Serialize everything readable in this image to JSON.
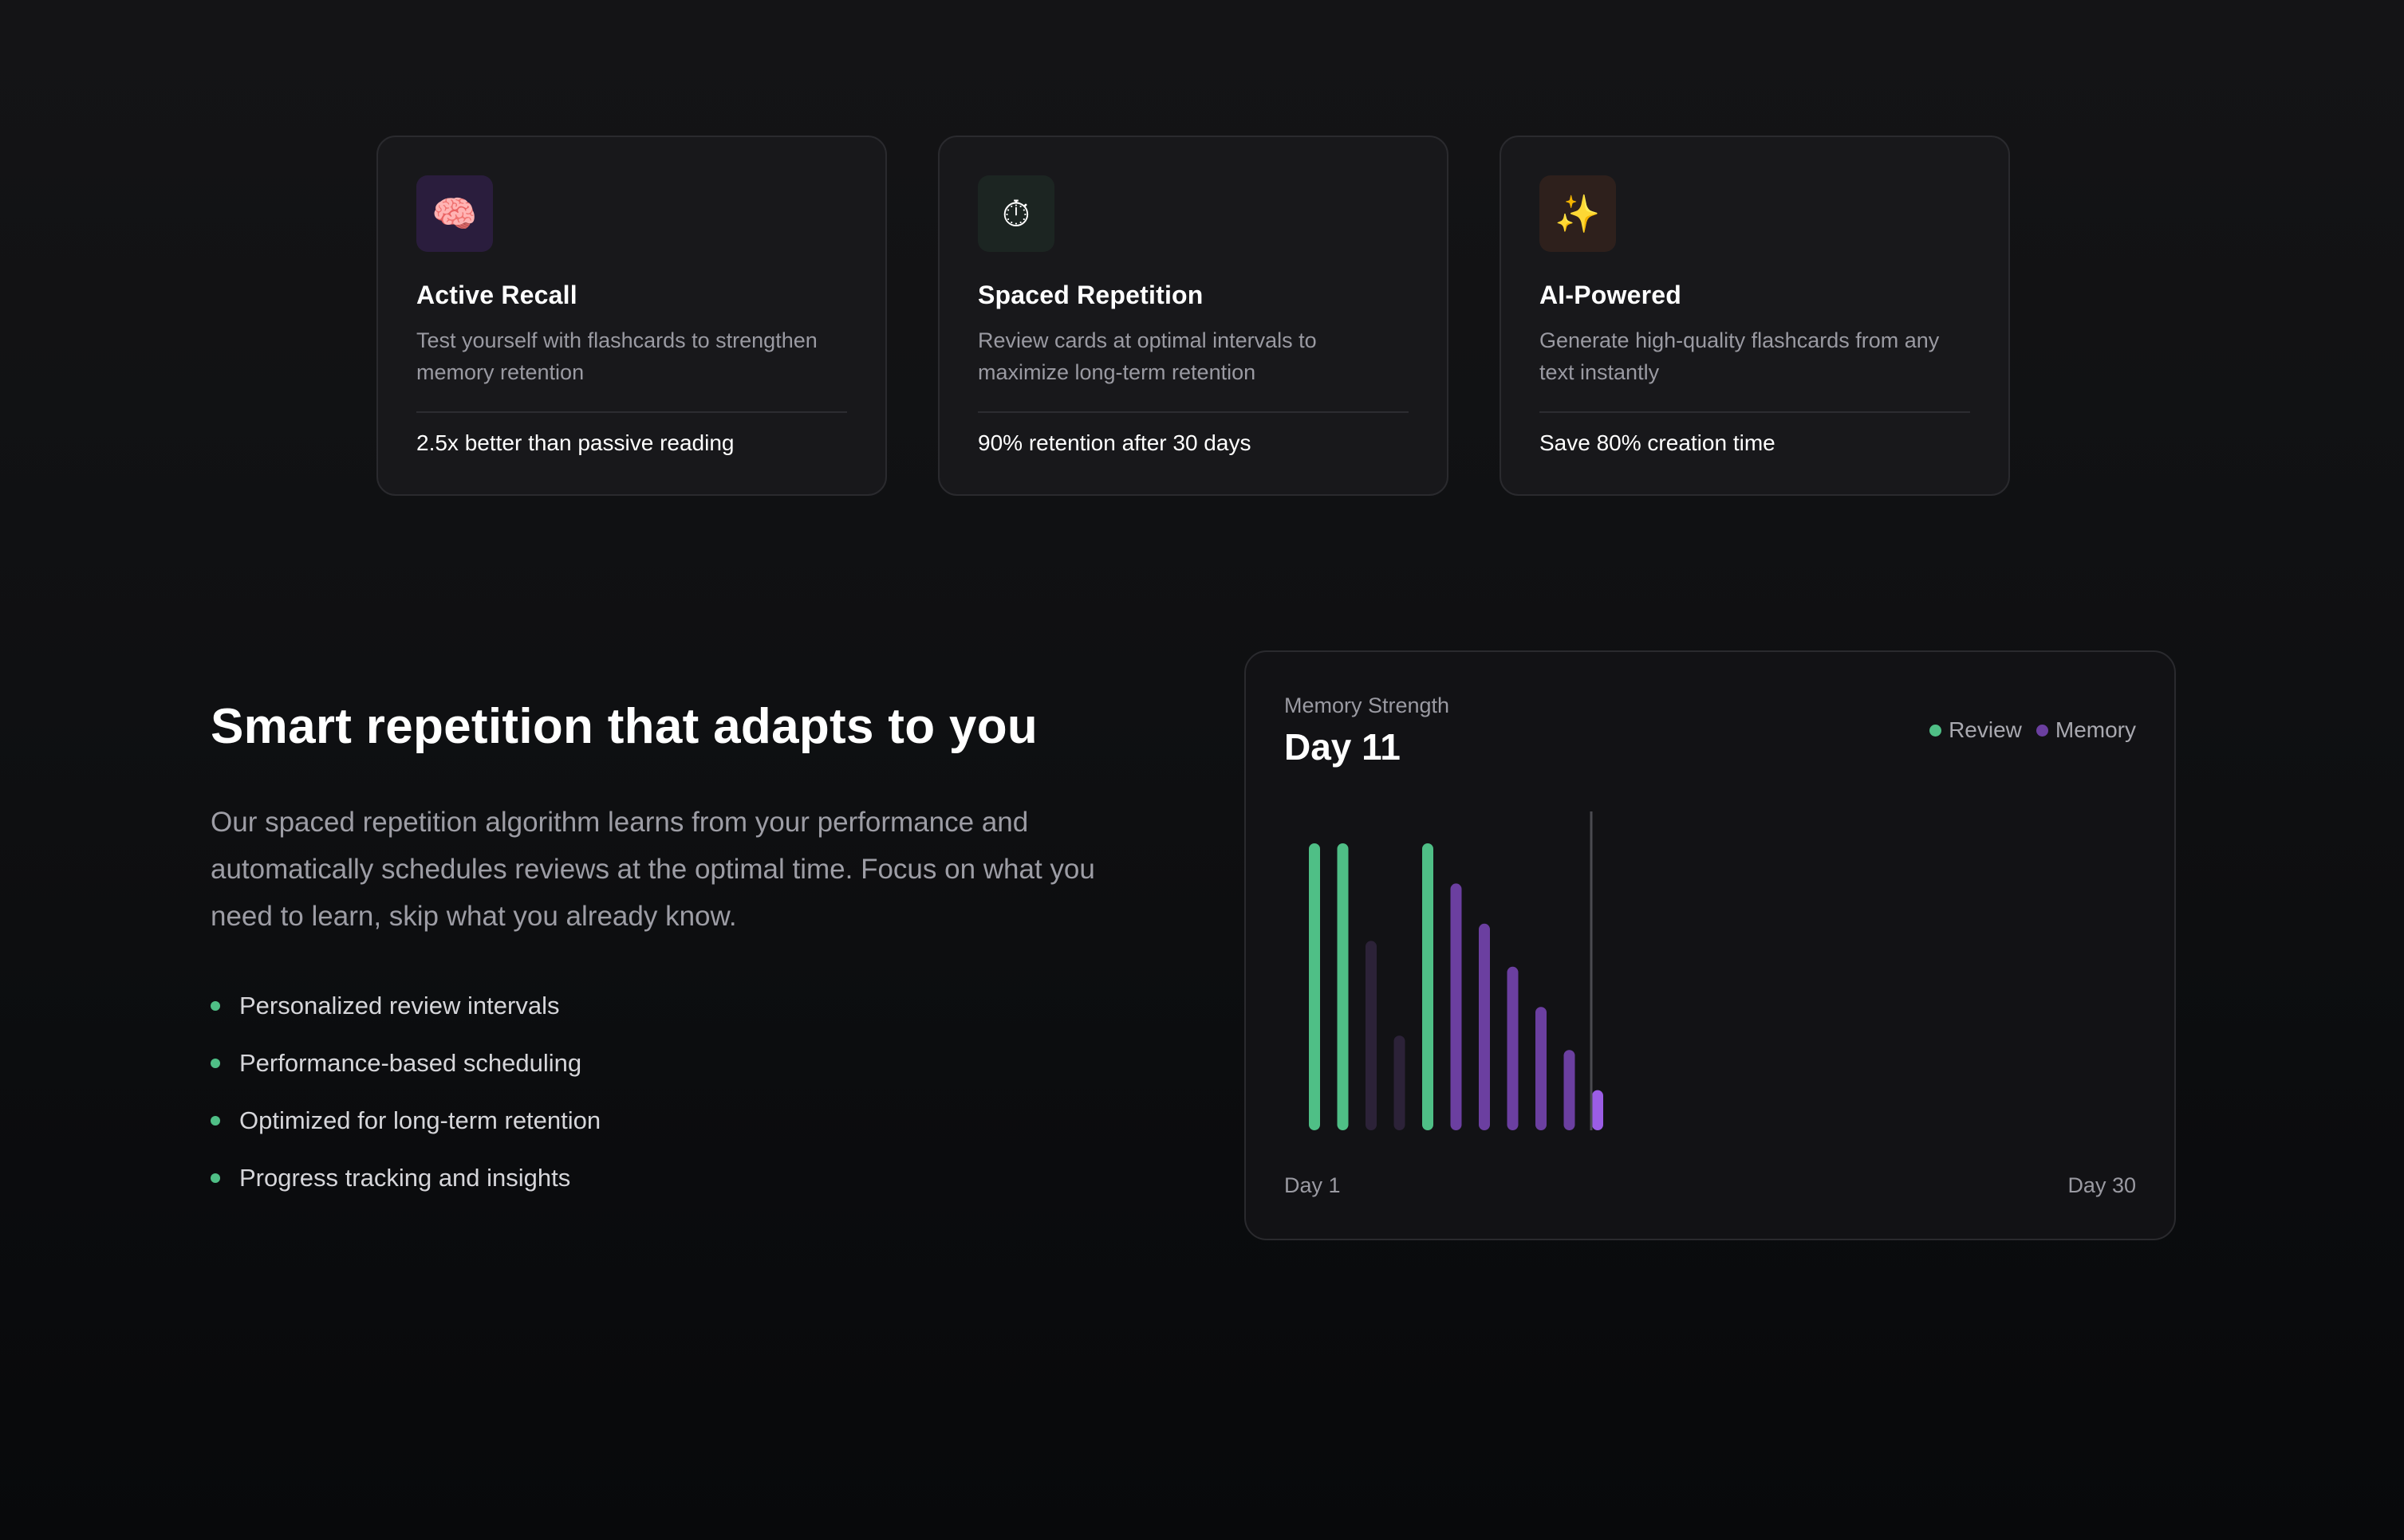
{
  "features": [
    {
      "icon": "brain-icon",
      "emoji": "🧠",
      "tint": "purple",
      "title": "Active Recall",
      "description": "Test yourself with flashcards to strengthen memory retention",
      "stat": "2.5x better than passive reading"
    },
    {
      "icon": "stopwatch-icon",
      "emoji": "⏱",
      "tint": "teal",
      "title": "Spaced Repetition",
      "description": "Review cards at optimal intervals to maximize long-term retention",
      "stat": "90% retention after 30 days"
    },
    {
      "icon": "magic-wand-icon",
      "emoji": "✨",
      "tint": "brown",
      "title": "AI-Powered",
      "description": "Generate high-quality flashcards from any text instantly",
      "stat": "Save 80% creation time"
    }
  ],
  "section": {
    "headline": "Smart repetition that adapts to you",
    "paragraph": "Our spaced repetition algorithm learns from your performance and automatically schedules reviews at the optimal time. Focus on what you need to learn, skip what you already know.",
    "bullets": [
      "Personalized review intervals",
      "Performance-based scheduling",
      "Optimized for long-term retention",
      "Progress tracking and insights"
    ]
  },
  "chart_panel": {
    "label": "Memory Strength",
    "current_day": "Day 11",
    "axis_start": "Day 1",
    "axis_end": "Day 30"
  },
  "colors": {
    "review": "#4fbf86",
    "memory": "#6b3fa0",
    "memory_faded": "#2c2238",
    "current": "#9b5de5",
    "bullet": "#4fbf86"
  },
  "chart_data": {
    "type": "bar",
    "x": [
      1,
      2,
      3,
      4,
      5,
      6,
      7,
      8,
      9,
      10,
      11
    ],
    "values": [
      100,
      100,
      66,
      33,
      100,
      86,
      72,
      57,
      43,
      28,
      14
    ],
    "kinds": [
      "review",
      "review",
      "faded",
      "faded",
      "review",
      "memory",
      "memory",
      "memory",
      "memory",
      "memory",
      "current"
    ],
    "ylim": [
      0,
      100
    ],
    "xlim": [
      1,
      30
    ],
    "current_day": 11,
    "legend": [
      "Review",
      "Memory"
    ],
    "legend_position": "top-right",
    "grid": false
  }
}
